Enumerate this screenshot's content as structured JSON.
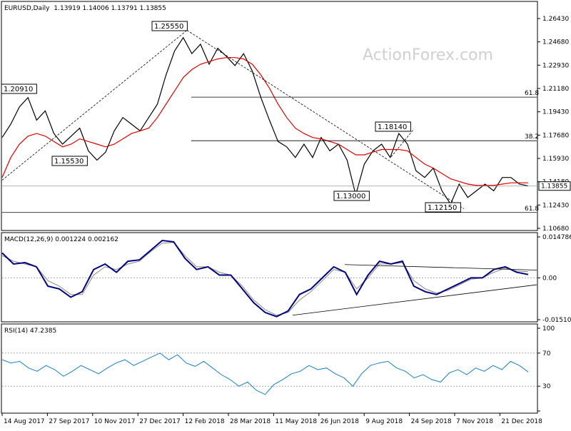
{
  "chart_data": [
    {
      "type": "line",
      "panel": "price",
      "title": "EURUSD,Daily",
      "ohlc_header": "1.13919 1.14006 1.13791 1.13855",
      "watermark": "ActionForex.com",
      "ylim": [
        1.1068,
        1.2643
      ],
      "y_ticks": [
        "1.26430",
        "1.24680",
        "1.22930",
        "1.21180",
        "1.19430",
        "1.17680",
        "1.15930",
        "1.14180",
        "1.12430",
        "1.10680"
      ],
      "last_price_label": "1.13855",
      "last_price": 1.13855,
      "x_tick_labels": [
        "14 Aug 2017",
        "27 Sep 2017",
        "10 Nov 2017",
        "27 Dec 2017",
        "12 Feb 2018",
        "28 Mar 2018",
        "11 May 2018",
        "26 Jun 2018",
        "9 Aug 2018",
        "24 Sep 2018",
        "7 Nov 2018",
        "21 Dec 2018"
      ],
      "price_path": [
        1.175,
        1.185,
        1.198,
        1.205,
        1.188,
        1.195,
        1.178,
        1.17,
        1.176,
        1.182,
        1.165,
        1.158,
        1.164,
        1.18,
        1.19,
        1.185,
        1.18,
        1.19,
        1.2,
        1.222,
        1.24,
        1.25,
        1.238,
        1.245,
        1.23,
        1.242,
        1.236,
        1.229,
        1.238,
        1.225,
        1.205,
        1.188,
        1.172,
        1.168,
        1.16,
        1.17,
        1.16,
        1.175,
        1.165,
        1.17,
        1.158,
        1.132,
        1.155,
        1.165,
        1.17,
        1.16,
        1.178,
        1.17,
        1.15,
        1.145,
        1.152,
        1.135,
        1.125,
        1.14,
        1.13,
        1.135,
        1.14,
        1.135,
        1.145,
        1.145,
        1.14,
        1.1386
      ],
      "ma_path": [
        1.145,
        1.16,
        1.17,
        1.176,
        1.178,
        1.176,
        1.172,
        1.168,
        1.17,
        1.174,
        1.172,
        1.17,
        1.168,
        1.17,
        1.174,
        1.178,
        1.18,
        1.182,
        1.19,
        1.2,
        1.21,
        1.22,
        1.226,
        1.23,
        1.232,
        1.234,
        1.235,
        1.235,
        1.234,
        1.23,
        1.222,
        1.212,
        1.2,
        1.19,
        1.182,
        1.178,
        1.175,
        1.174,
        1.172,
        1.17,
        1.166,
        1.162,
        1.162,
        1.164,
        1.166,
        1.166,
        1.166,
        1.165,
        1.16,
        1.155,
        1.152,
        1.148,
        1.144,
        1.142,
        1.14,
        1.139,
        1.139,
        1.139,
        1.14,
        1.141,
        1.141,
        1.141
      ],
      "annotations": [
        {
          "label": "1.25550",
          "value": 1.2555
        },
        {
          "label": "1.15530",
          "value": 1.1553
        },
        {
          "label": "1.13000",
          "value": 1.13
        },
        {
          "label": "1.18140",
          "value": 1.1814
        },
        {
          "label": "1.12150",
          "value": 1.1215
        },
        {
          "label": "1.20910",
          "value": 1.2091
        }
      ],
      "fib_levels": [
        {
          "label": "61.8",
          "value": 1.2053
        },
        {
          "label": "38.2",
          "value": 1.1726
        },
        {
          "label": "61.8",
          "value": 1.1187
        }
      ],
      "series": [
        {
          "name": "EURUSD",
          "color": "#000000"
        },
        {
          "name": "MA",
          "color": "#e00000"
        }
      ]
    },
    {
      "type": "line",
      "panel": "macd",
      "title": "MACD(12,26,9) 0.001224 0.002162",
      "ylim": [
        -0.01511,
        0.01479
      ],
      "y_ticks": [
        "0.014786",
        "0.00",
        "-0.015107"
      ],
      "macd_path": [
        0.009,
        0.005,
        0.0055,
        0.004,
        -0.003,
        -0.004,
        -0.007,
        -0.005,
        0.003,
        0.005,
        0.002,
        0.006,
        0.0065,
        0.01,
        0.0135,
        0.013,
        0.007,
        0.003,
        0.004,
        0.001,
        0.001,
        -0.004,
        -0.009,
        -0.0125,
        -0.014,
        -0.012,
        -0.006,
        -0.004,
        0.0,
        0.004,
        0.002,
        -0.006,
        0.001,
        0.006,
        0.005,
        0.006,
        -0.003,
        -0.005,
        -0.006,
        -0.004,
        -0.002,
        0.0,
        0.0,
        0.003,
        0.004,
        0.002,
        0.0012
      ],
      "signal_path": [
        0.008,
        0.006,
        0.005,
        0.004,
        -0.001,
        -0.003,
        -0.006,
        -0.006,
        0.001,
        0.004,
        0.003,
        0.005,
        0.006,
        0.0095,
        0.0125,
        0.0128,
        0.008,
        0.004,
        0.004,
        0.002,
        0.001,
        -0.003,
        -0.008,
        -0.0115,
        -0.0135,
        -0.0125,
        -0.008,
        -0.005,
        -0.001,
        0.003,
        0.002,
        -0.004,
        0.0,
        0.005,
        0.005,
        0.0055,
        -0.001,
        -0.004,
        -0.0055,
        -0.0045,
        -0.0025,
        -0.0005,
        0.0,
        0.002,
        0.0035,
        0.0025,
        0.0022
      ],
      "series": [
        {
          "name": "MACD",
          "color": "#00007a"
        },
        {
          "name": "Signal",
          "color": "#888888"
        }
      ]
    },
    {
      "type": "line",
      "panel": "rsi",
      "title": "RSI(14) 47.2385",
      "ylim": [
        0,
        100
      ],
      "y_ticks": [
        "100",
        "70",
        "30",
        "0"
      ],
      "rsi_path": [
        62,
        58,
        60,
        52,
        48,
        55,
        50,
        42,
        48,
        55,
        50,
        45,
        52,
        58,
        62,
        55,
        60,
        65,
        70,
        62,
        68,
        58,
        54,
        60,
        52,
        44,
        38,
        30,
        35,
        25,
        20,
        32,
        38,
        45,
        48,
        55,
        50,
        52,
        45,
        40,
        30,
        45,
        55,
        58,
        60,
        52,
        48,
        40,
        44,
        38,
        35,
        46,
        50,
        44,
        52,
        48,
        55,
        50,
        60,
        55,
        47.2
      ],
      "series": [
        {
          "name": "RSI",
          "color": "#1a7fc0"
        }
      ]
    }
  ]
}
